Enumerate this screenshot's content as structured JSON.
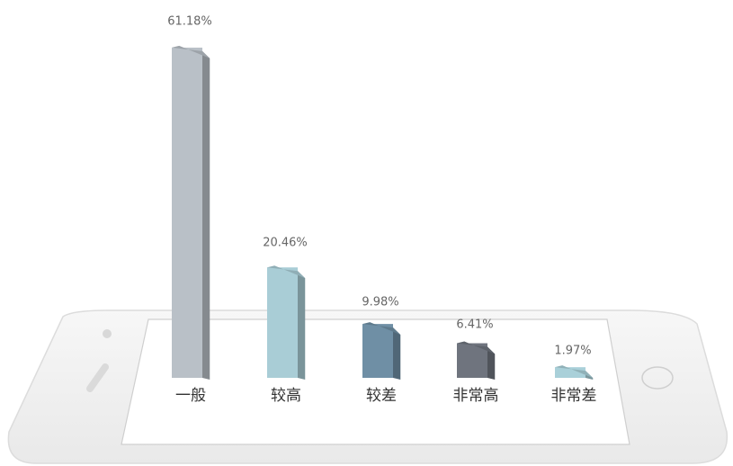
{
  "chart_data": {
    "type": "bar3d",
    "categories": [
      "一般",
      "较高",
      "较差",
      "非常高",
      "非常差"
    ],
    "values": [
      61.18,
      20.46,
      9.98,
      6.41,
      1.97
    ],
    "value_labels": [
      "61.18%",
      "20.46%",
      "9.98%",
      "6.41%",
      "1.97%"
    ],
    "colors": [
      "#b9c0c7",
      "#a9cdd6",
      "#6f8fa5",
      "#6f747e",
      "#a9d0d9"
    ]
  }
}
